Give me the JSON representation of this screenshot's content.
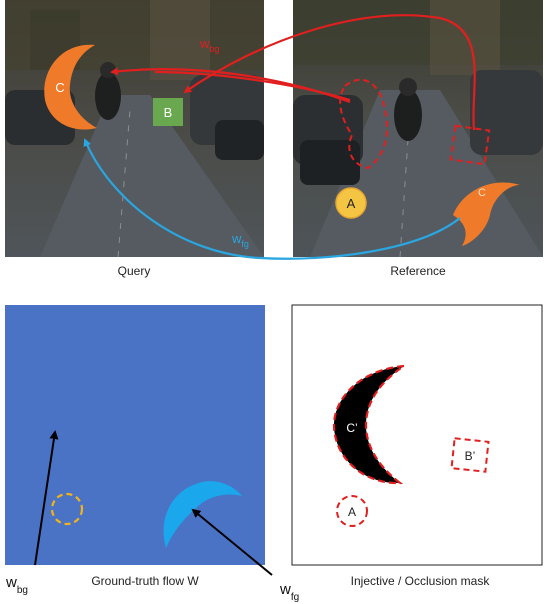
{
  "panels": {
    "query": {
      "caption": "Query"
    },
    "reference": {
      "caption": "Reference"
    },
    "flow": {
      "caption": "Ground-truth flow W",
      "background_color": "#4a73c6"
    },
    "mask": {
      "caption": "Injective / Occlusion mask"
    }
  },
  "markers": {
    "query_c": "C",
    "query_b": "B",
    "ref_a": "A",
    "ref_c": "C",
    "mask_c": "C’",
    "mask_b": "B’",
    "mask_a": "A"
  },
  "flow_labels": {
    "w_bg_main": "w",
    "w_bg_sub": "bg",
    "w_fg_main": "w",
    "w_fg_sub": "fg"
  },
  "colors": {
    "red_arrow": "#e01f1f",
    "blue_arrow": "#2aa6e0",
    "orange_shape": "#ef7a2a",
    "green_shape": "#6aa84f",
    "yellow_circle": "#f4c542",
    "flow_bg": "#4a73c6",
    "fg_crescent": "#1aa7ec"
  }
}
